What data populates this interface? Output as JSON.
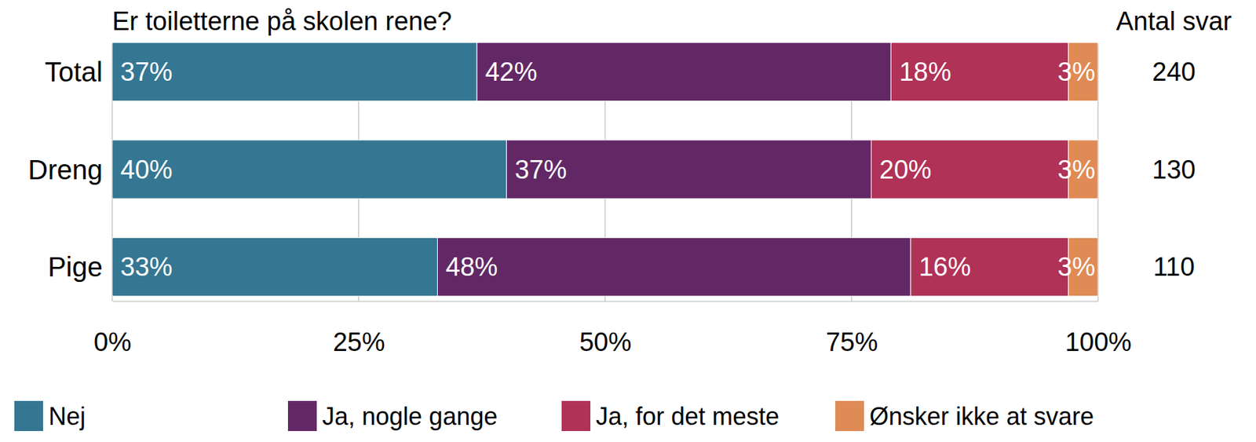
{
  "chart_data": {
    "type": "bar",
    "title": "Er toiletterne på skolen rene?",
    "orientation": "horizontal",
    "stacked": true,
    "data_labels": true,
    "grid": true,
    "legend": "bottom",
    "categories": [
      "Total",
      "Dreng",
      "Pige"
    ],
    "series": [
      {
        "name": "Nej",
        "color": "#357793",
        "values": [
          37,
          40,
          33
        ],
        "value_labels": [
          "37%",
          "40%",
          "33%"
        ]
      },
      {
        "name": "Ja, nogle gange",
        "color": "#622866",
        "values": [
          42,
          37,
          48
        ],
        "value_labels": [
          "42%",
          "37%",
          "48%"
        ]
      },
      {
        "name": "Ja, for det meste",
        "color": "#b03257",
        "values": [
          18,
          20,
          16
        ],
        "value_labels": [
          "18%",
          "20%",
          "16%"
        ]
      },
      {
        "name": "Ønsker ikke at svare",
        "color": "#e08a55",
        "values": [
          3,
          3,
          3
        ],
        "value_labels": [
          "3%",
          "3%",
          "3%"
        ]
      }
    ],
    "xlim": [
      0,
      100
    ],
    "xticks": [
      {
        "value": 0,
        "label": "0%"
      },
      {
        "value": 25,
        "label": "25%"
      },
      {
        "value": 50,
        "label": "50%"
      },
      {
        "value": 75,
        "label": "75%"
      },
      {
        "value": 100,
        "label": "100%"
      }
    ],
    "response_counts": {
      "title": "Antal svar",
      "values": [
        240,
        130,
        110
      ]
    }
  }
}
